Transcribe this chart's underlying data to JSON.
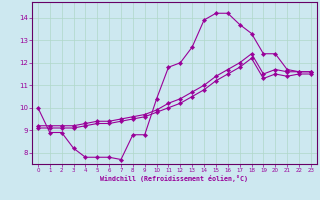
{
  "xlabel": "Windchill (Refroidissement éolien,°C)",
  "bg_color": "#cde8f0",
  "grid_color": "#b0d8c8",
  "line_color": "#990099",
  "spine_color": "#660066",
  "xlim": [
    -0.5,
    23.5
  ],
  "ylim": [
    7.5,
    14.7
  ],
  "yticks": [
    8,
    9,
    10,
    11,
    12,
    13,
    14
  ],
  "xticks": [
    0,
    1,
    2,
    3,
    4,
    5,
    6,
    7,
    8,
    9,
    10,
    11,
    12,
    13,
    14,
    15,
    16,
    17,
    18,
    19,
    20,
    21,
    22,
    23
  ],
  "line1_x": [
    0,
    1,
    2,
    3,
    4,
    5,
    6,
    7,
    8,
    9,
    10,
    11,
    12,
    13,
    14,
    15,
    16,
    17,
    18,
    19,
    20,
    21,
    22,
    23
  ],
  "line1_y": [
    10.0,
    8.9,
    8.9,
    8.2,
    7.8,
    7.8,
    7.8,
    7.7,
    8.8,
    8.8,
    10.4,
    11.8,
    12.0,
    12.7,
    13.9,
    14.2,
    14.2,
    13.7,
    13.3,
    12.4,
    12.4,
    11.7,
    11.6,
    11.6
  ],
  "line2_x": [
    0,
    1,
    2,
    3,
    4,
    5,
    6,
    7,
    8,
    9,
    10,
    11,
    12,
    13,
    14,
    15,
    16,
    17,
    18,
    19,
    20,
    21,
    22,
    23
  ],
  "line2_y": [
    9.1,
    9.1,
    9.1,
    9.1,
    9.2,
    9.3,
    9.3,
    9.4,
    9.5,
    9.6,
    9.8,
    10.0,
    10.2,
    10.5,
    10.8,
    11.2,
    11.5,
    11.8,
    12.2,
    11.3,
    11.5,
    11.4,
    11.5,
    11.5
  ],
  "line3_x": [
    0,
    1,
    2,
    3,
    4,
    5,
    6,
    7,
    8,
    9,
    10,
    11,
    12,
    13,
    14,
    15,
    16,
    17,
    18,
    19,
    20,
    21,
    22,
    23
  ],
  "line3_y": [
    9.2,
    9.2,
    9.2,
    9.2,
    9.3,
    9.4,
    9.4,
    9.5,
    9.6,
    9.7,
    9.9,
    10.2,
    10.4,
    10.7,
    11.0,
    11.4,
    11.7,
    12.0,
    12.4,
    11.5,
    11.7,
    11.6,
    11.6,
    11.6
  ]
}
